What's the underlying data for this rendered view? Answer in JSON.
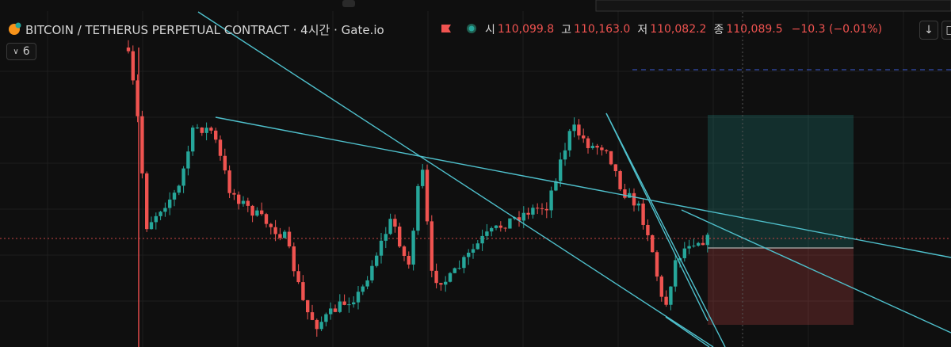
{
  "header": {
    "symbol": "BITCOIN / TETHERUS PERPETUAL CONTRACT · 4시간 · Gate.io",
    "ohlc": {
      "open_label": "시",
      "open": "110,099.8",
      "high_label": "고",
      "high": "110,163.0",
      "low_label": "저",
      "low": "110,082.2",
      "close_label": "종",
      "close": "110,089.5",
      "change": "−10.3 (−0.01%)"
    },
    "indicator_count": "6"
  }
}
